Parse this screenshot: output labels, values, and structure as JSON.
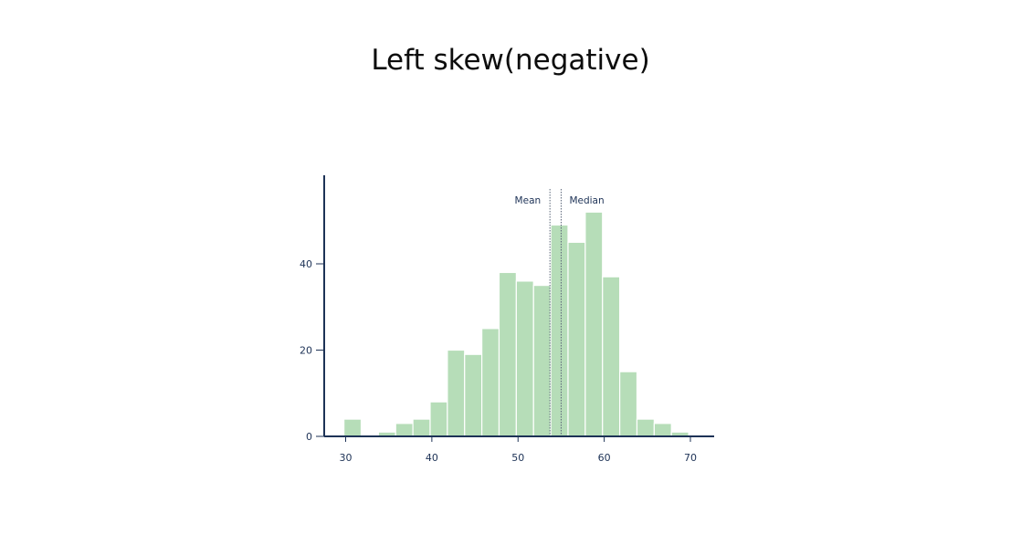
{
  "page": {
    "title": "Left skew(negative)"
  },
  "chart_data": {
    "type": "bar",
    "subtype": "histogram",
    "title": "Left skew(negative)",
    "xlabel": "",
    "ylabel": "",
    "xlim": [
      27.5,
      72.5
    ],
    "ylim": [
      0,
      60
    ],
    "bin_width": 2,
    "bins": [
      {
        "start": 29.8,
        "end": 31.8,
        "count": 4
      },
      {
        "start": 33.8,
        "end": 35.8,
        "count": 1
      },
      {
        "start": 35.8,
        "end": 37.8,
        "count": 3
      },
      {
        "start": 37.8,
        "end": 39.8,
        "count": 4
      },
      {
        "start": 39.8,
        "end": 41.8,
        "count": 8
      },
      {
        "start": 41.8,
        "end": 43.8,
        "count": 20
      },
      {
        "start": 43.8,
        "end": 45.8,
        "count": 19
      },
      {
        "start": 45.8,
        "end": 47.8,
        "count": 25
      },
      {
        "start": 47.8,
        "end": 49.8,
        "count": 38
      },
      {
        "start": 49.8,
        "end": 51.8,
        "count": 36
      },
      {
        "start": 51.8,
        "end": 53.8,
        "count": 35
      },
      {
        "start": 53.8,
        "end": 55.8,
        "count": 49
      },
      {
        "start": 55.8,
        "end": 57.8,
        "count": 45
      },
      {
        "start": 57.8,
        "end": 59.8,
        "count": 52
      },
      {
        "start": 59.8,
        "end": 61.8,
        "count": 37
      },
      {
        "start": 61.8,
        "end": 63.8,
        "count": 15
      },
      {
        "start": 63.8,
        "end": 65.8,
        "count": 4
      },
      {
        "start": 65.8,
        "end": 67.8,
        "count": 3
      },
      {
        "start": 67.8,
        "end": 69.8,
        "count": 1
      }
    ],
    "x_ticks": [
      30,
      40,
      50,
      60,
      70
    ],
    "y_ticks": [
      0,
      20,
      40
    ],
    "reference_lines": [
      {
        "name": "mean",
        "label": "Mean",
        "value": 53.7,
        "label_side": "left"
      },
      {
        "name": "median",
        "label": "Median",
        "value": 55.0,
        "label_side": "right"
      }
    ],
    "grid": false,
    "colors": {
      "bar_fill": "#b6ddb8",
      "bar_edge": "#ffffff",
      "axis": "#1d3256",
      "reference_line": "#5a6578"
    }
  }
}
